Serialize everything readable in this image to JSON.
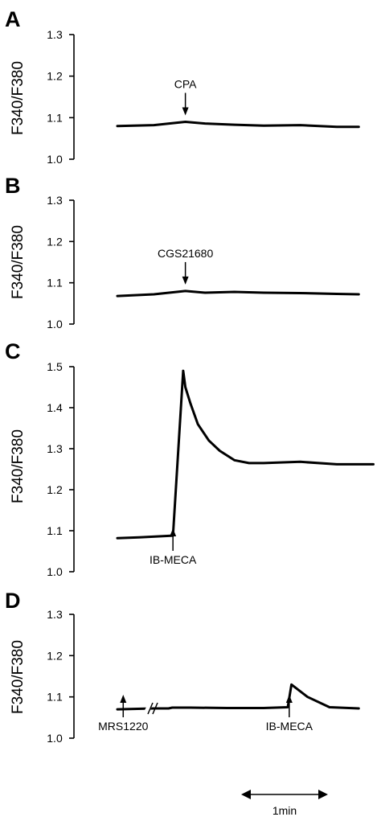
{
  "chart_data": [
    {
      "type": "line",
      "panel": "A",
      "ylabel": "F340/F380",
      "ylim": [
        1.0,
        1.3
      ],
      "yticks": [
        "1.0",
        "1.1",
        "1.2",
        "1.3"
      ],
      "x_minutes": [
        0,
        0.5,
        0.93,
        1.2,
        1.6,
        2.0,
        2.5,
        3.0,
        3.3
      ],
      "values": [
        1.08,
        1.082,
        1.09,
        1.086,
        1.083,
        1.081,
        1.082,
        1.078,
        1.078
      ],
      "annotations": [
        {
          "label": "CPA",
          "x_minutes": 0.93,
          "direction": "down"
        }
      ]
    },
    {
      "type": "line",
      "panel": "B",
      "ylabel": "F340/F380",
      "ylim": [
        1.0,
        1.3
      ],
      "yticks": [
        "1.0",
        "1.1",
        "1.2",
        "1.3"
      ],
      "x_minutes": [
        0,
        0.5,
        0.93,
        1.2,
        1.6,
        2.0,
        2.5,
        3.0,
        3.3
      ],
      "values": [
        1.068,
        1.072,
        1.08,
        1.076,
        1.078,
        1.076,
        1.075,
        1.073,
        1.072
      ],
      "annotations": [
        {
          "label": "CGS21680",
          "x_minutes": 0.93,
          "direction": "down"
        }
      ]
    },
    {
      "type": "line",
      "panel": "C",
      "ylabel": "F340/F380",
      "ylim": [
        1.0,
        1.5
      ],
      "yticks": [
        "1.0",
        "1.1",
        "1.2",
        "1.3",
        "1.4",
        "1.5"
      ],
      "x_minutes": [
        0,
        0.3,
        0.76,
        0.9,
        0.93,
        1.0,
        1.1,
        1.25,
        1.4,
        1.6,
        1.8,
        2.0,
        2.5,
        3.0,
        3.5
      ],
      "values": [
        1.082,
        1.084,
        1.088,
        1.49,
        1.45,
        1.41,
        1.36,
        1.32,
        1.295,
        1.272,
        1.265,
        1.265,
        1.268,
        1.262,
        1.262
      ],
      "annotations": [
        {
          "label": "IB-MECA",
          "x_minutes": 0.76,
          "direction": "up"
        }
      ]
    },
    {
      "type": "line",
      "panel": "D",
      "ylabel": "F340/F380",
      "ylim": [
        1.0,
        1.3
      ],
      "yticks": [
        "1.0",
        "1.1",
        "1.2",
        "1.3"
      ],
      "axis_break": true,
      "x_minutes": [
        0,
        0.5,
        0.7,
        0.75,
        1.0,
        1.5,
        2.0,
        2.33,
        2.38,
        2.6,
        2.9,
        3.3
      ],
      "values": [
        1.07,
        1.072,
        1.072,
        1.074,
        1.074,
        1.073,
        1.073,
        1.075,
        1.13,
        1.1,
        1.075,
        1.072
      ],
      "annotations": [
        {
          "label": "MRS1220",
          "x_minutes": 0.08,
          "direction": "up"
        },
        {
          "label": "IB-MECA",
          "x_minutes": 2.35,
          "direction": "up"
        }
      ]
    }
  ],
  "scale_bar": {
    "label": "1min",
    "minutes": 1
  }
}
